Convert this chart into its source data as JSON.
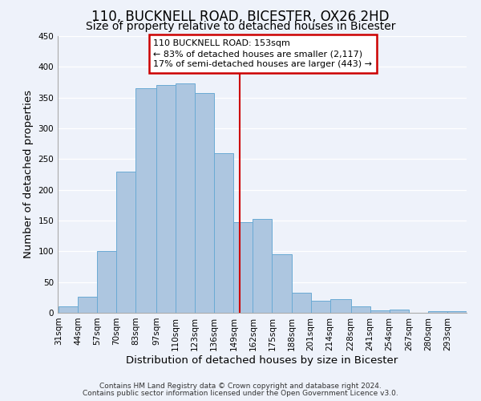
{
  "title": "110, BUCKNELL ROAD, BICESTER, OX26 2HD",
  "subtitle": "Size of property relative to detached houses in Bicester",
  "xlabel": "Distribution of detached houses by size in Bicester",
  "ylabel": "Number of detached properties",
  "bar_labels": [
    "31sqm",
    "44sqm",
    "57sqm",
    "70sqm",
    "83sqm",
    "97sqm",
    "110sqm",
    "123sqm",
    "136sqm",
    "149sqm",
    "162sqm",
    "175sqm",
    "188sqm",
    "201sqm",
    "214sqm",
    "228sqm",
    "241sqm",
    "254sqm",
    "267sqm",
    "280sqm",
    "293sqm"
  ],
  "bar_values": [
    10,
    26,
    100,
    230,
    365,
    370,
    373,
    358,
    260,
    147,
    153,
    95,
    32,
    20,
    22,
    10,
    4,
    5,
    0,
    3,
    2
  ],
  "bar_edges": [
    31,
    44,
    57,
    70,
    83,
    97,
    110,
    123,
    136,
    149,
    162,
    175,
    188,
    201,
    214,
    228,
    241,
    254,
    267,
    280,
    293,
    306
  ],
  "bar_color": "#adc6e0",
  "bar_edgecolor": "#6aaad4",
  "ylim": [
    0,
    450
  ],
  "yticks": [
    0,
    50,
    100,
    150,
    200,
    250,
    300,
    350,
    400,
    450
  ],
  "vline_x": 153,
  "vline_color": "#cc0000",
  "annotation_title": "110 BUCKNELL ROAD: 153sqm",
  "annotation_line1": "← 83% of detached houses are smaller (2,117)",
  "annotation_line2": "17% of semi-detached houses are larger (443) →",
  "annotation_box_color": "#cc0000",
  "footer_line1": "Contains HM Land Registry data © Crown copyright and database right 2024.",
  "footer_line2": "Contains public sector information licensed under the Open Government Licence v3.0.",
  "background_color": "#eef2fa",
  "grid_color": "#ffffff",
  "title_fontsize": 12,
  "subtitle_fontsize": 10,
  "axis_label_fontsize": 9.5,
  "tick_fontsize": 7.5,
  "footer_fontsize": 6.5
}
